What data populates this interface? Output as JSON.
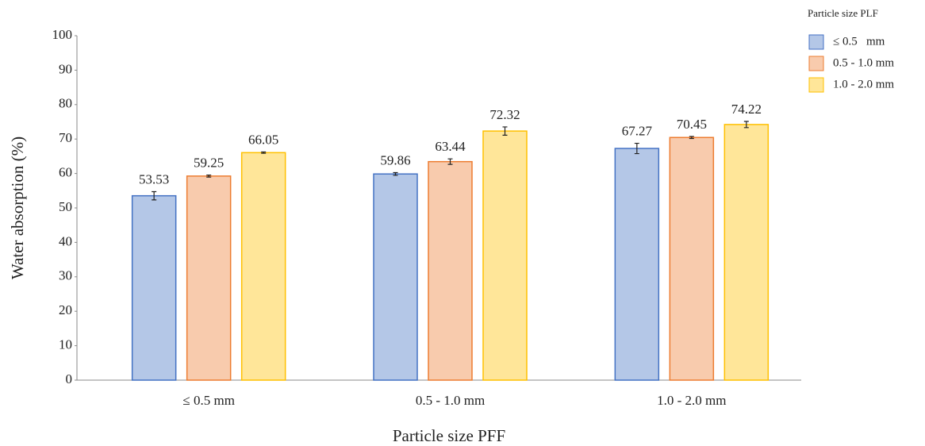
{
  "chart_data": {
    "type": "bar",
    "x_label": "Particle size PFF",
    "y_label": "Water absorption (%)",
    "legend_title": "Particle size PLF",
    "legend_position": "top-right",
    "categories": [
      "≤ 0.5 mm",
      "0.5 - 1.0 mm",
      "1.0 - 2.0 mm"
    ],
    "series": [
      {
        "name": "≤ 0.5   mm",
        "color": "#4472c4",
        "values": [
          53.53,
          59.86,
          67.27
        ],
        "errors": [
          1.2,
          0.4,
          1.5
        ]
      },
      {
        "name": "0.5 - 1.0 mm",
        "color": "#ed7d31",
        "values": [
          59.25,
          63.44,
          70.45
        ],
        "errors": [
          0.3,
          0.8,
          0.3
        ]
      },
      {
        "name": "1.0 - 2.0 mm",
        "color": "#ffc000",
        "values": [
          66.05,
          72.32,
          74.22
        ],
        "errors": [
          0.2,
          1.2,
          0.9
        ]
      }
    ],
    "ylim": [
      0,
      100
    ],
    "yticks": [
      0,
      10,
      20,
      30,
      40,
      50,
      60,
      70,
      80,
      90,
      100
    ],
    "grid": false
  }
}
